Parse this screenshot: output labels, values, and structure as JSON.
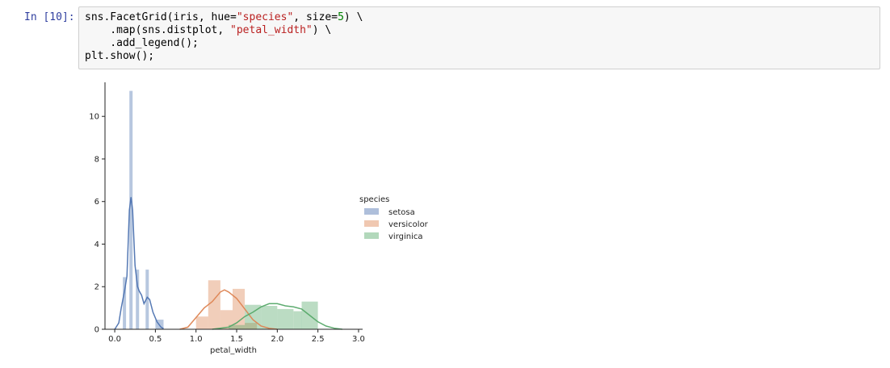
{
  "cell": {
    "prompt": "In [10]:",
    "code_lines": [
      "sns.FacetGrid(iris, hue=\"species\", size=5) \\",
      "    .map(sns.distplot, \"petal_width\") \\",
      "    .add_legend();",
      "plt.show();"
    ]
  },
  "chart_data": {
    "type": "histogram",
    "title": "",
    "xlabel": "petal_width",
    "ylabel": "",
    "xlim": [
      -0.12,
      3.05
    ],
    "ylim": [
      0,
      11.6
    ],
    "xticks": [
      "0.0",
      "0.5",
      "1.0",
      "1.5",
      "2.0",
      "2.5",
      "3.0"
    ],
    "yticks": [
      "0",
      "2",
      "4",
      "6",
      "8",
      "10"
    ],
    "grid": false,
    "legend": {
      "title": "species",
      "placement": "right"
    },
    "series": [
      {
        "name": "setosa",
        "color": "#4c72b0",
        "bins": [
          {
            "x0": 0.1,
            "x1": 0.14,
            "h": 2.45
          },
          {
            "x0": 0.14,
            "x1": 0.18,
            "h": 0.0
          },
          {
            "x0": 0.18,
            "x1": 0.22,
            "h": 11.2
          },
          {
            "x0": 0.22,
            "x1": 0.26,
            "h": 0.0
          },
          {
            "x0": 0.26,
            "x1": 0.3,
            "h": 2.8
          },
          {
            "x0": 0.3,
            "x1": 0.38,
            "h": 0.0
          },
          {
            "x0": 0.38,
            "x1": 0.42,
            "h": 2.8
          },
          {
            "x0": 0.42,
            "x1": 0.5,
            "h": 0.0
          },
          {
            "x0": 0.5,
            "x1": 0.6,
            "h": 0.45
          }
        ],
        "kde": [
          [
            0.0,
            0.0
          ],
          [
            0.05,
            0.3
          ],
          [
            0.08,
            1.0
          ],
          [
            0.12,
            1.8
          ],
          [
            0.15,
            2.5
          ],
          [
            0.18,
            5.6
          ],
          [
            0.2,
            6.2
          ],
          [
            0.22,
            5.6
          ],
          [
            0.25,
            3.0
          ],
          [
            0.28,
            2.0
          ],
          [
            0.3,
            1.8
          ],
          [
            0.33,
            1.6
          ],
          [
            0.36,
            1.2
          ],
          [
            0.4,
            1.5
          ],
          [
            0.43,
            1.4
          ],
          [
            0.47,
            0.8
          ],
          [
            0.52,
            0.35
          ],
          [
            0.57,
            0.1
          ],
          [
            0.6,
            0.03
          ]
        ]
      },
      {
        "name": "versicolor",
        "color": "#dd8452",
        "bins": [
          {
            "x0": 1.0,
            "x1": 1.15,
            "h": 0.6
          },
          {
            "x0": 1.15,
            "x1": 1.3,
            "h": 2.3
          },
          {
            "x0": 1.3,
            "x1": 1.45,
            "h": 0.9
          },
          {
            "x0": 1.45,
            "x1": 1.6,
            "h": 1.9
          },
          {
            "x0": 1.6,
            "x1": 1.75,
            "h": 0.3
          },
          {
            "x0": 1.75,
            "x1": 1.9,
            "h": 0.0
          }
        ],
        "kde": [
          [
            0.8,
            0.0
          ],
          [
            0.9,
            0.1
          ],
          [
            1.0,
            0.55
          ],
          [
            1.1,
            1.0
          ],
          [
            1.2,
            1.3
          ],
          [
            1.3,
            1.75
          ],
          [
            1.35,
            1.85
          ],
          [
            1.4,
            1.75
          ],
          [
            1.5,
            1.45
          ],
          [
            1.6,
            0.95
          ],
          [
            1.7,
            0.45
          ],
          [
            1.8,
            0.15
          ],
          [
            1.9,
            0.04
          ],
          [
            2.0,
            0.0
          ]
        ]
      },
      {
        "name": "virginica",
        "color": "#55a868",
        "bins": [
          {
            "x0": 1.4,
            "x1": 1.6,
            "h": 0.2
          },
          {
            "x0": 1.6,
            "x1": 1.8,
            "h": 1.15
          },
          {
            "x0": 1.8,
            "x1": 2.0,
            "h": 1.1
          },
          {
            "x0": 2.0,
            "x1": 2.2,
            "h": 0.95
          },
          {
            "x0": 2.2,
            "x1": 2.3,
            "h": 0.85
          },
          {
            "x0": 2.3,
            "x1": 2.5,
            "h": 1.3
          }
        ],
        "kde": [
          [
            1.2,
            0.0
          ],
          [
            1.4,
            0.1
          ],
          [
            1.5,
            0.3
          ],
          [
            1.6,
            0.6
          ],
          [
            1.7,
            0.8
          ],
          [
            1.8,
            1.05
          ],
          [
            1.9,
            1.2
          ],
          [
            2.0,
            1.2
          ],
          [
            2.1,
            1.1
          ],
          [
            2.2,
            1.05
          ],
          [
            2.3,
            0.95
          ],
          [
            2.4,
            0.65
          ],
          [
            2.5,
            0.35
          ],
          [
            2.6,
            0.15
          ],
          [
            2.7,
            0.05
          ],
          [
            2.8,
            0.0
          ]
        ]
      }
    ]
  }
}
